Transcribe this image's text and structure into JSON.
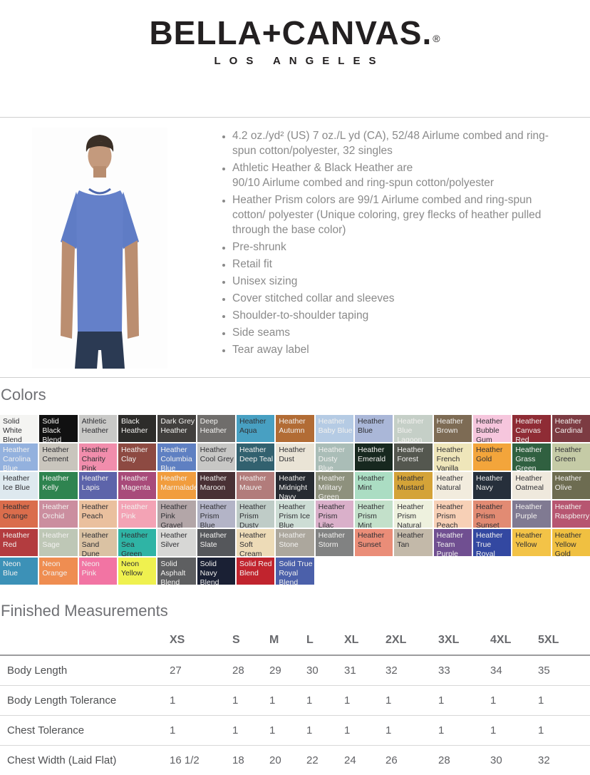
{
  "logo": {
    "brand": "BELLA+CANVAS.",
    "registered": "®",
    "subtitle": "LOS ANGELES"
  },
  "product": {
    "photo_alt": "man-wearing-heather-blue-tshirt",
    "bullets": [
      "4.2 oz./yd² (US) 7 oz./L yd (CA), 52/48 Airlume combed and ring-spun cotton/polyester, 32 singles",
      "Athletic Heather & Black Heather are\n90/10 Airlume combed and ring-spun cotton/polyester",
      "Heather Prism colors are 99/1 Airlume combed and ring-spun cotton/ polyester (Unique coloring, grey flecks of heather pulled through the base color)",
      "Pre-shrunk",
      "Retail fit",
      "Unisex sizing",
      "Cover stitched collar and sleeves",
      "Shoulder-to-shoulder taping",
      "Side seams",
      "Tear away label"
    ]
  },
  "colors": {
    "title": "Colors",
    "swatches": [
      {
        "name": "Solid White Blend",
        "bg": "#f4f4f2",
        "light": false
      },
      {
        "name": "Solid Black Blend",
        "bg": "#111111",
        "light": true
      },
      {
        "name": "Athletic Heather",
        "bg": "#c9c9c7",
        "light": false
      },
      {
        "name": "Black Heather",
        "bg": "#2d2c2a",
        "light": true
      },
      {
        "name": "Dark Grey Heather",
        "bg": "#413f3d",
        "light": true
      },
      {
        "name": "Deep Heather",
        "bg": "#6f6d6b",
        "light": true
      },
      {
        "name": "Heather Aqua",
        "bg": "#48a0c2",
        "light": false
      },
      {
        "name": "Heather Autumn",
        "bg": "#b26c35",
        "light": true
      },
      {
        "name": "Heather Baby Blue",
        "bg": "#b5cbe4",
        "light": true
      },
      {
        "name": "Heather Blue",
        "bg": "#aab7d8",
        "light": false
      },
      {
        "name": "Heather Blue Lagoon",
        "bg": "#c5cfc7",
        "light": true
      },
      {
        "name": "Heather Brown",
        "bg": "#7d6b54",
        "light": true
      },
      {
        "name": "Heather Bubble Gum",
        "bg": "#f6c6dd",
        "light": false
      },
      {
        "name": "Heather Canvas Red",
        "bg": "#8f2c35",
        "light": true
      },
      {
        "name": "Heather Cardinal",
        "bg": "#7c3b42",
        "light": true
      },
      {
        "name": "Heather Carolina Blue",
        "bg": "#93b1de",
        "light": true
      },
      {
        "name": "Heather Cement",
        "bg": "#c9c5bd",
        "light": false
      },
      {
        "name": "Heather Charity Pink",
        "bg": "#f18dac",
        "light": false
      },
      {
        "name": "Heather Clay",
        "bg": "#8d4a42",
        "light": true
      },
      {
        "name": "Heather Columbia Blue",
        "bg": "#5f80c2",
        "light": true
      },
      {
        "name": "Heather Cool Grey",
        "bg": "#c7c7c5",
        "light": false
      },
      {
        "name": "Heather Deep Teal",
        "bg": "#32616f",
        "light": true
      },
      {
        "name": "Heather Dust",
        "bg": "#eae4d6",
        "light": false
      },
      {
        "name": "Heather Dusty Blue",
        "bg": "#aabdb7",
        "light": true
      },
      {
        "name": "Heather Emerald",
        "bg": "#17281f",
        "light": true
      },
      {
        "name": "Heather Forest",
        "bg": "#54574f",
        "light": true
      },
      {
        "name": "Heather French Vanilla",
        "bg": "#efe6ba",
        "light": false
      },
      {
        "name": "Heather Gold",
        "bg": "#f3a53b",
        "light": false
      },
      {
        "name": "Heather Grass Green",
        "bg": "#306040",
        "light": true
      },
      {
        "name": "Heather Green",
        "bg": "#c5cba6",
        "light": false
      },
      {
        "name": "Heather Ice Blue",
        "bg": "#dee9ef",
        "light": false
      },
      {
        "name": "Heather Kelly",
        "bg": "#2f8450",
        "light": true
      },
      {
        "name": "Heather Lapis",
        "bg": "#5d64aa",
        "light": true
      },
      {
        "name": "Heather Magenta",
        "bg": "#a84b7a",
        "light": true
      },
      {
        "name": "Heather Marmalade",
        "bg": "#f19d3e",
        "light": true
      },
      {
        "name": "Heather Maroon",
        "bg": "#493135",
        "light": true
      },
      {
        "name": "Heather Mauve",
        "bg": "#b27c7b",
        "light": true
      },
      {
        "name": "Heather Midnight Navy",
        "bg": "#272b32",
        "light": true
      },
      {
        "name": "Heather Military Green",
        "bg": "#8e917d",
        "light": true
      },
      {
        "name": "Heather Mint",
        "bg": "#abddc3",
        "light": false
      },
      {
        "name": "Heather Mustard",
        "bg": "#d4a338",
        "light": false
      },
      {
        "name": "Heather Natural",
        "bg": "#f2ecde",
        "light": false
      },
      {
        "name": "Heather Navy",
        "bg": "#262f3b",
        "light": true
      },
      {
        "name": "Heather Oatmeal",
        "bg": "#efe9dd",
        "light": false
      },
      {
        "name": "Heather Olive",
        "bg": "#6d6c51",
        "light": true
      },
      {
        "name": "Heather Orange",
        "bg": "#da6d4c",
        "light": false
      },
      {
        "name": "Heather Orchid",
        "bg": "#cb8e9f",
        "light": true
      },
      {
        "name": "Heather Peach",
        "bg": "#eac09e",
        "light": false
      },
      {
        "name": "Heather Pink",
        "bg": "#f3a3b5",
        "light": true
      },
      {
        "name": "Heather Pink Gravel",
        "bg": "#b3a6a8",
        "light": false
      },
      {
        "name": "Heather Prism Blue",
        "bg": "#b3b4c7",
        "light": false
      },
      {
        "name": "Heather Prism Dusty Blue",
        "bg": "#bfccc7",
        "light": false
      },
      {
        "name": "Heather Prism Ice Blue",
        "bg": "#cdddd5",
        "light": false
      },
      {
        "name": "Heather Prism Lilac",
        "bg": "#dab0ca",
        "light": false
      },
      {
        "name": "Heather Prism Mint",
        "bg": "#c3e0ca",
        "light": false
      },
      {
        "name": "Heather Prism Natural",
        "bg": "#eef1de",
        "light": false
      },
      {
        "name": "Heather Prism Peach",
        "bg": "#f7d0b6",
        "light": false
      },
      {
        "name": "Heather Prism Sunset",
        "bg": "#e28b73",
        "light": false
      },
      {
        "name": "Heather Purple",
        "bg": "#807a92",
        "light": true
      },
      {
        "name": "Heather Raspberry",
        "bg": "#b75671",
        "light": true
      },
      {
        "name": "Heather Red",
        "bg": "#b33c3f",
        "light": true
      },
      {
        "name": "Heather Sage",
        "bg": "#bec7b6",
        "light": true
      },
      {
        "name": "Heather Sand Dune",
        "bg": "#dac2a3",
        "light": false
      },
      {
        "name": "Heather Sea Green",
        "bg": "#2fb4a5",
        "light": false
      },
      {
        "name": "Heather Silver",
        "bg": "#d7d7d5",
        "light": false
      },
      {
        "name": "Heather Slate",
        "bg": "#55575b",
        "light": true
      },
      {
        "name": "Heather Soft Cream",
        "bg": "#eddbb7",
        "light": false
      },
      {
        "name": "Heather Stone",
        "bg": "#aca79d",
        "light": true
      },
      {
        "name": "Heather Storm",
        "bg": "#818282",
        "light": true
      },
      {
        "name": "Heather Sunset",
        "bg": "#ea8d78",
        "light": false
      },
      {
        "name": "Heather Tan",
        "bg": "#c3b9a9",
        "light": false
      },
      {
        "name": "Heather Team Purple",
        "bg": "#704f91",
        "light": true
      },
      {
        "name": "Heather True Royal",
        "bg": "#3348a1",
        "light": true
      },
      {
        "name": "Heather Yellow",
        "bg": "#f3c347",
        "light": false
      },
      {
        "name": "Heather Yellow Gold",
        "bg": "#f0c041",
        "light": false
      },
      {
        "name": "Neon Blue",
        "bg": "#3c91b7",
        "light": true
      },
      {
        "name": "Neon Orange",
        "bg": "#ef8d51",
        "light": true
      },
      {
        "name": "Neon Pink",
        "bg": "#f274a3",
        "light": true
      },
      {
        "name": "Neon Yellow",
        "bg": "#eff14f",
        "light": false
      },
      {
        "name": "Solid Asphalt Blend",
        "bg": "#5e5f61",
        "light": true
      },
      {
        "name": "Solid Navy Blend",
        "bg": "#1a2034",
        "light": true
      },
      {
        "name": "Solid Red Blend",
        "bg": "#c1242e",
        "light": true
      },
      {
        "name": "Solid True Royal Blend",
        "bg": "#4b60aa",
        "light": true
      }
    ]
  },
  "measurements": {
    "title": "Finished Measurements",
    "sizes": [
      "XS",
      "S",
      "M",
      "L",
      "XL",
      "2XL",
      "3XL",
      "4XL",
      "5XL"
    ],
    "rows": [
      {
        "label": "Body Length",
        "values": [
          "27",
          "28",
          "29",
          "30",
          "31",
          "32",
          "33",
          "34",
          "35"
        ]
      },
      {
        "label": "Body Length Tolerance",
        "values": [
          "1",
          "1",
          "1",
          "1",
          "1",
          "1",
          "1",
          "1",
          "1"
        ]
      },
      {
        "label": "Chest Tolerance",
        "values": [
          "1",
          "1",
          "1",
          "1",
          "1",
          "1",
          "1",
          "1",
          "1"
        ]
      },
      {
        "label": "Chest Width (Laid Flat)",
        "values": [
          "16 1/2",
          "18",
          "20",
          "22",
          "24",
          "26",
          "28",
          "30",
          "32"
        ]
      }
    ]
  }
}
